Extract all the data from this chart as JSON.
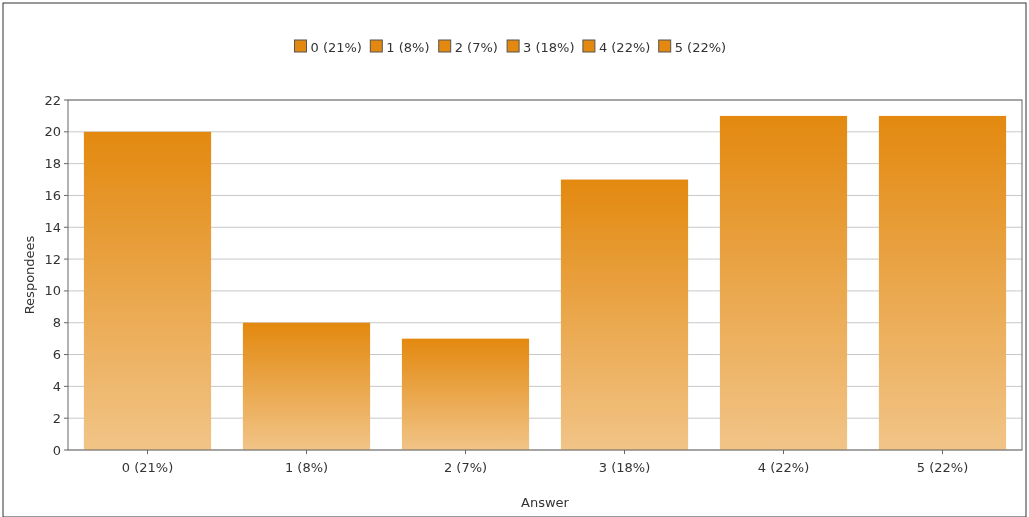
{
  "chart_data": {
    "type": "bar",
    "categories": [
      "0 (21%)",
      "1 (8%)",
      "2 (7%)",
      "3 (18%)",
      "4 (22%)",
      "5 (22%)"
    ],
    "stacked": true,
    "series": [
      {
        "name": "0 (21%)",
        "color": "#e3890f",
        "values": [
          20,
          null,
          null,
          null,
          null,
          null
        ]
      },
      {
        "name": "1 (8%)",
        "color": "#e3890f",
        "values": [
          null,
          8,
          null,
          null,
          null,
          null
        ]
      },
      {
        "name": "2 (7%)",
        "color": "#e3890f",
        "values": [
          null,
          null,
          7,
          null,
          null,
          null
        ]
      },
      {
        "name": "3 (18%)",
        "color": "#e3890f",
        "values": [
          null,
          null,
          null,
          17,
          null,
          null
        ]
      },
      {
        "name": "4 (22%)",
        "color": "#e3890f",
        "values": [
          null,
          null,
          null,
          null,
          21,
          null
        ]
      },
      {
        "name": "5 (22%)",
        "color": "#e3890f",
        "values": [
          null,
          null,
          null,
          null,
          null,
          21
        ]
      }
    ],
    "xlabel": "Answer",
    "ylabel": "Respondees",
    "ylim": [
      0,
      22
    ],
    "yticks": [
      0,
      2,
      4,
      6,
      8,
      10,
      12,
      14,
      16,
      18,
      20,
      22
    ],
    "grid": "y",
    "legend": "top"
  }
}
